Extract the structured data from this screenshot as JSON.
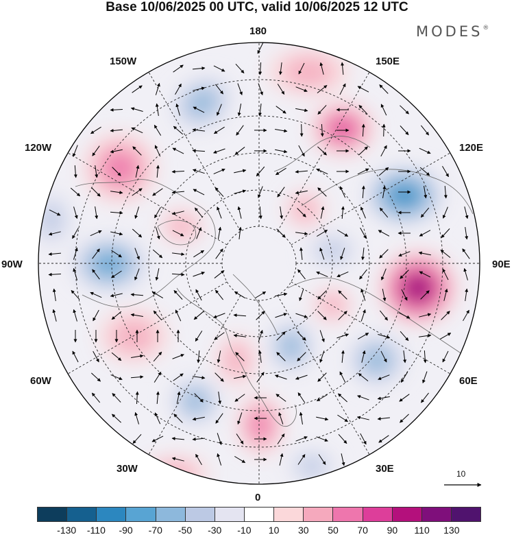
{
  "title": "Base 10/06/2025 00 UTC, valid 10/06/2025 12 UTC",
  "brand": {
    "name": "MODES",
    "mark": "®"
  },
  "longitude_labels": {
    "top": "180",
    "bottom": "0",
    "left": "90W",
    "right": "90E",
    "upper_left_150": "150W",
    "upper_left_120": "120W",
    "upper_right_150": "150E",
    "upper_right_120": "120E",
    "lower_left_60": "60W",
    "lower_left_30": "30W",
    "lower_right_60": "60E",
    "lower_right_30": "30E"
  },
  "vector_reference": {
    "label": "10"
  },
  "colorbar": {
    "colors": [
      "#0d3d5c",
      "#15608f",
      "#2c87bf",
      "#58a4d3",
      "#8db8dc",
      "#bcc9e4",
      "#e4e4f1",
      "#ffffff",
      "#fbd8da",
      "#f5a9bd",
      "#ee76ad",
      "#dd3e9a",
      "#b4107c",
      "#7f0f7b",
      "#50136e"
    ],
    "tick_labels": [
      "-130",
      "-110",
      "-90",
      "-70",
      "-50",
      "-30",
      "-10",
      "10",
      "30",
      "50",
      "70",
      "90",
      "110",
      "130"
    ]
  },
  "anomaly_centers": [
    {
      "id": "a1",
      "value": -60
    },
    {
      "id": "a2",
      "value": 60
    },
    {
      "id": "a3",
      "value": 70
    },
    {
      "id": "a4",
      "value": -100
    },
    {
      "id": "a5",
      "value": 120
    },
    {
      "id": "a6",
      "value": -80
    },
    {
      "id": "a7",
      "value": -60
    },
    {
      "id": "a8",
      "value": 40
    },
    {
      "id": "a9",
      "value": -50
    },
    {
      "id": "a10",
      "value": 50
    },
    {
      "id": "a11",
      "value": 40
    },
    {
      "id": "a12",
      "value": -50
    },
    {
      "id": "a13",
      "value": 40
    },
    {
      "id": "a14",
      "value": 30
    },
    {
      "id": "a15",
      "value": 40
    },
    {
      "id": "a16",
      "value": -30
    },
    {
      "id": "a17",
      "value": 30
    },
    {
      "id": "a18",
      "value": -30
    },
    {
      "id": "a19",
      "value": 30
    },
    {
      "id": "a20",
      "value": -40
    }
  ]
}
